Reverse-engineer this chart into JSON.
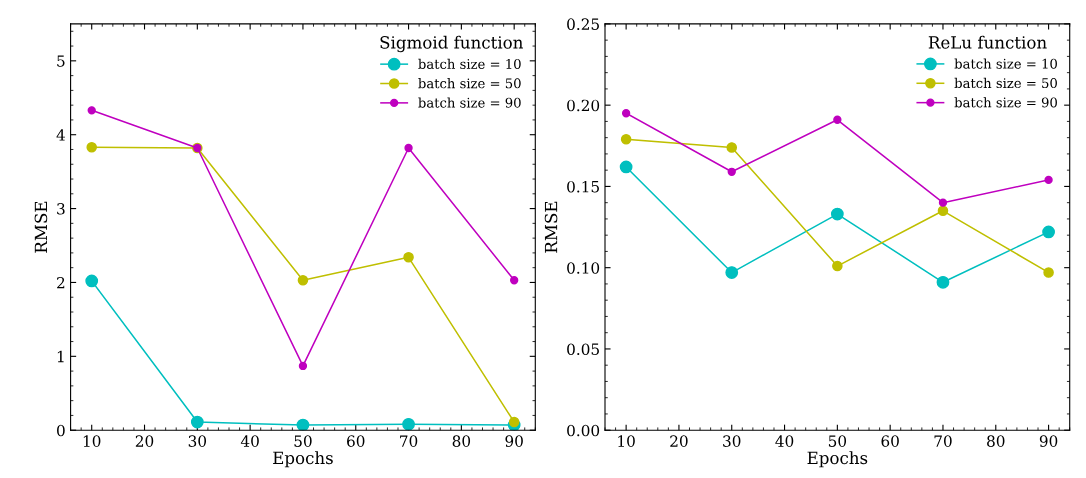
{
  "chart_data": [
    {
      "type": "line",
      "xlabel": "Epochs",
      "ylabel": "RMSE",
      "legend_title": "Sigmoid function",
      "x": [
        10,
        30,
        50,
        70,
        90
      ],
      "xlim": [
        6,
        94
      ],
      "xticks": [
        10,
        20,
        30,
        40,
        50,
        60,
        70,
        80,
        90
      ],
      "ylim": [
        0,
        5.5
      ],
      "yticks": [
        0,
        1,
        2,
        3,
        4,
        5
      ],
      "marker": "circle",
      "legend": "top right",
      "grid": false,
      "series": [
        {
          "name": "batch size = 10",
          "color": "#00bfbf",
          "values": [
            2.02,
            0.11,
            0.07,
            0.08,
            0.07
          ]
        },
        {
          "name": "batch size = 50",
          "color": "#bfbf00",
          "values": [
            3.83,
            3.82,
            2.03,
            2.34,
            0.11
          ]
        },
        {
          "name": "batch size = 90",
          "color": "#bf00bf",
          "values": [
            4.33,
            3.82,
            0.87,
            3.82,
            2.03
          ]
        }
      ]
    },
    {
      "type": "line",
      "xlabel": "Epochs",
      "ylabel": "RMSE",
      "legend_title": "ReLu function",
      "x": [
        10,
        30,
        50,
        70,
        90
      ],
      "xlim": [
        6,
        94
      ],
      "xticks": [
        10,
        20,
        30,
        40,
        50,
        60,
        70,
        80,
        90
      ],
      "ylim": [
        0,
        0.25
      ],
      "yticks": [
        {
          "value": 0,
          "label": "0.00"
        },
        {
          "value": 0.05,
          "label": "0.05"
        },
        {
          "value": 0.1,
          "label": "0.10"
        },
        {
          "value": 0.15,
          "label": "0.15"
        },
        {
          "value": 0.2,
          "label": "0.20"
        },
        {
          "value": 0.25,
          "label": "0.25"
        }
      ],
      "marker": "circle",
      "legend": "top right",
      "grid": false,
      "series": [
        {
          "name": "batch size = 10",
          "color": "#00bfbf",
          "values": [
            0.162,
            0.097,
            0.133,
            0.091,
            0.122
          ]
        },
        {
          "name": "batch size = 50",
          "color": "#bfbf00",
          "values": [
            0.179,
            0.174,
            0.101,
            0.135,
            0.097
          ]
        },
        {
          "name": "batch size = 90",
          "color": "#bf00bf",
          "values": [
            0.195,
            0.159,
            0.191,
            0.14,
            0.154
          ]
        }
      ]
    }
  ]
}
